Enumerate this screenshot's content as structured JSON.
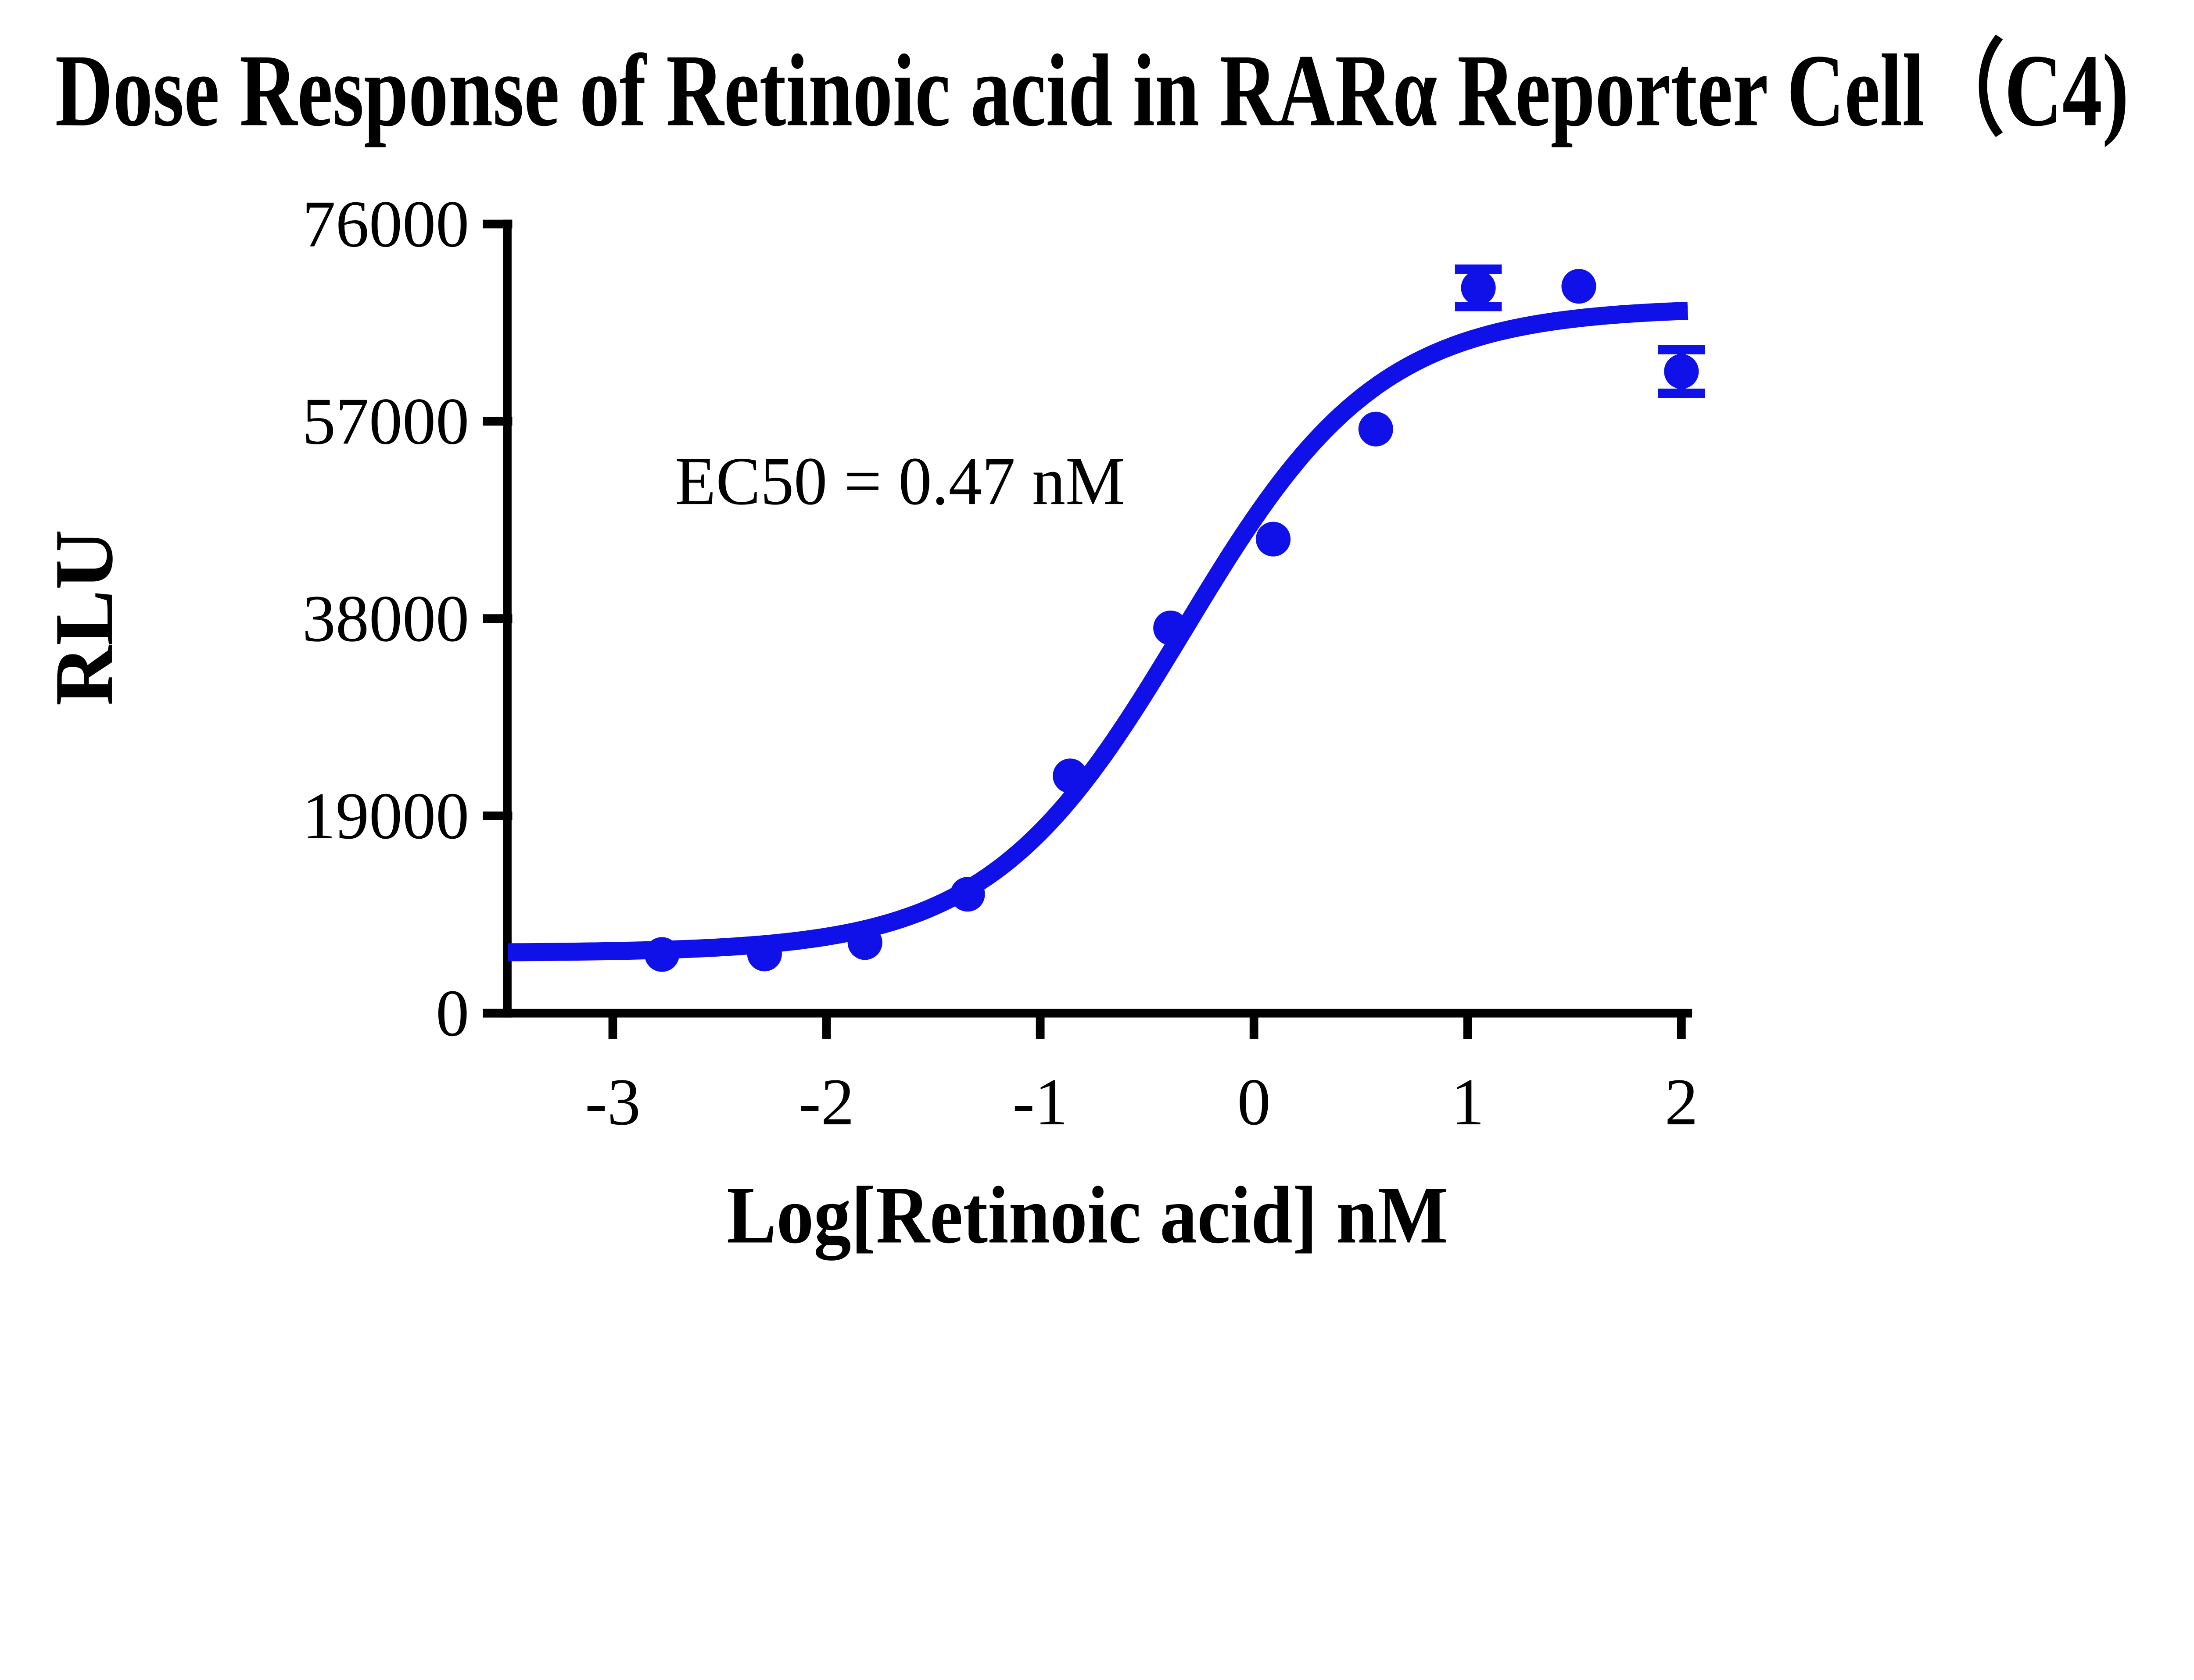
{
  "chart": {
    "background_color": "#ffffff",
    "axis_color": "#000000",
    "series_color": "#1010e8"
  },
  "chart_data": {
    "type": "scatter",
    "title": "Dose Response of Retinoic acid in RARα Reporter Cell（C4)",
    "xlabel": "Log[Retinoic acid] nM",
    "ylabel": "RLU",
    "annotation": "EC50 = 0.47 nM",
    "ec50_nM": 0.47,
    "grid": false,
    "legend": false,
    "x_ticks": [
      -3,
      -2,
      -1,
      0,
      1,
      2
    ],
    "y_ticks": [
      0,
      19000,
      38000,
      57000,
      76000
    ],
    "xlim": [
      -3.6,
      2.05
    ],
    "ylim": [
      0,
      76000
    ],
    "series": [
      {
        "name": "Retinoic acid",
        "marker": "circle",
        "color": "#1010e8",
        "points": [
          {
            "x": -2.77,
            "y": 5650
          },
          {
            "x": -2.29,
            "y": 5700
          },
          {
            "x": -1.82,
            "y": 6800
          },
          {
            "x": -1.34,
            "y": 11450
          },
          {
            "x": -0.86,
            "y": 22850
          },
          {
            "x": -0.39,
            "y": 37100
          },
          {
            "x": 0.09,
            "y": 45650
          },
          {
            "x": 0.57,
            "y": 56250
          },
          {
            "x": 1.05,
            "y": 69850,
            "err": 1800
          },
          {
            "x": 1.52,
            "y": 70000
          },
          {
            "x": 2.0,
            "y": 61800,
            "err": 2100
          }
        ]
      }
    ],
    "fit_curve": {
      "model": "4PL",
      "bottom": 5800,
      "top": 68000,
      "log_ec50": -0.328,
      "hill": 0.95,
      "x_start": -3.49,
      "x_end": 2.03,
      "color": "#1010e8"
    }
  }
}
